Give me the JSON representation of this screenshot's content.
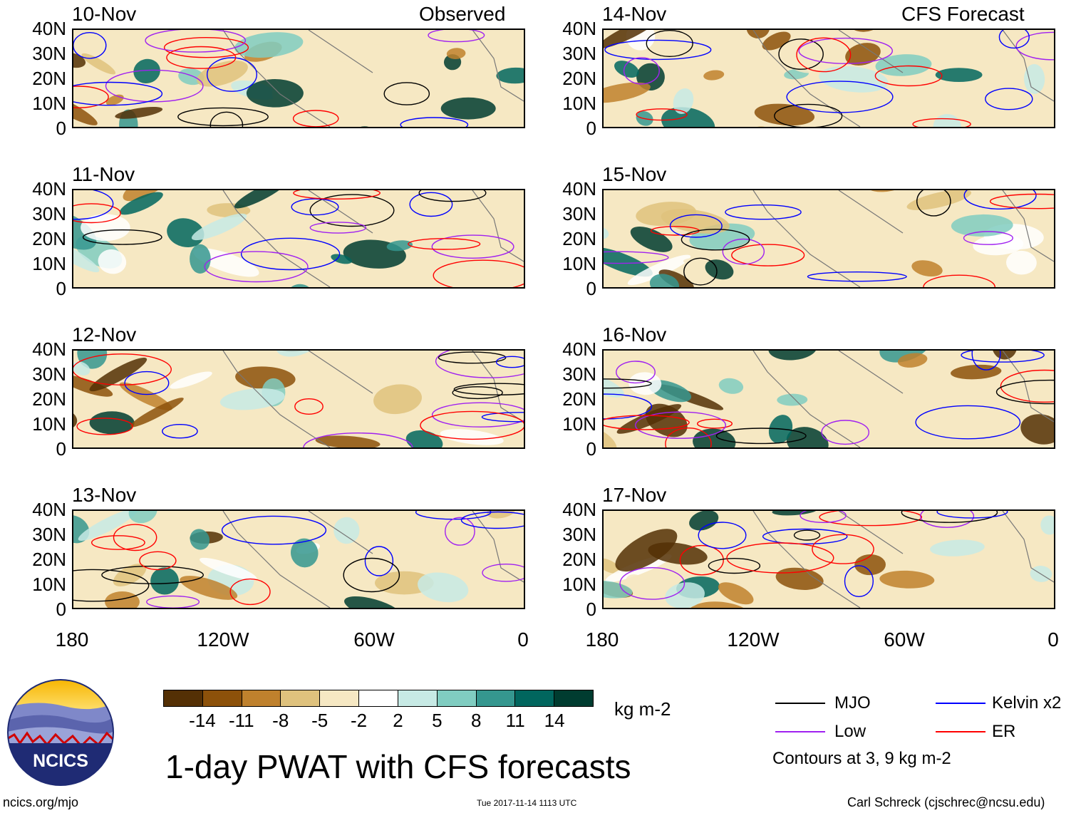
{
  "panels_left": [
    {
      "date": "10-Nov",
      "label": "Observed"
    },
    {
      "date": "11-Nov",
      "label": ""
    },
    {
      "date": "12-Nov",
      "label": ""
    },
    {
      "date": "13-Nov",
      "label": ""
    }
  ],
  "panels_right": [
    {
      "date": "14-Nov",
      "label": "CFS Forecast"
    },
    {
      "date": "15-Nov",
      "label": ""
    },
    {
      "date": "16-Nov",
      "label": ""
    },
    {
      "date": "17-Nov",
      "label": ""
    }
  ],
  "lat_labels": [
    "40N",
    "30N",
    "20N",
    "10N",
    "0"
  ],
  "lon_labels": [
    "180",
    "120W",
    "60W",
    "0"
  ],
  "colorbar": {
    "ticks": [
      "-14",
      "-11",
      "-8",
      "-5",
      "-2",
      "2",
      "5",
      "8",
      "11",
      "14"
    ],
    "colors": [
      "#543005",
      "#8c510a",
      "#bf812d",
      "#dfc27d",
      "#f6e8c3",
      "#ffffff",
      "#c7eae5",
      "#80cdc1",
      "#35978f",
      "#01665e",
      "#003c30"
    ],
    "units": "kg m-2"
  },
  "title": "1-day PWAT with CFS forecasts",
  "legend": {
    "mjo": "MJO",
    "kelvin": "Kelvin x2",
    "low": "Low",
    "er": "ER",
    "contours": "Contours at 3, 9 kg m-2",
    "colors": {
      "mjo": "#000000",
      "kelvin": "#0000ff",
      "low": "#a020f0",
      "er": "#ff0000"
    }
  },
  "logo": {
    "text": "NCICS"
  },
  "footer": {
    "url": "ncics.org/mjo",
    "timestamp": "Tue 2017-11-14 1113 UTC",
    "author": "Carl Schreck (cjschrec@ncsu.edu)"
  }
}
